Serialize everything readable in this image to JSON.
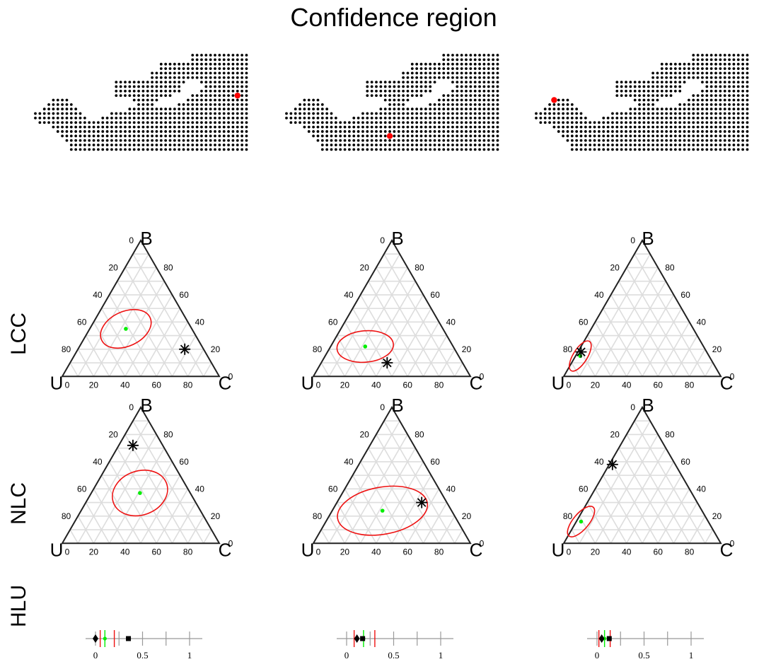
{
  "title": "Confidence region",
  "row_labels": {
    "lcc": "LCC",
    "nlc": "NLC",
    "hlu": "HLU"
  },
  "colors": {
    "dot": "#000000",
    "highlight": "#ff0000",
    "region": "#ee1111",
    "estimate": "#00ee00",
    "grid": "#dddddd",
    "edge": "#222222",
    "axis": "#999999"
  },
  "chart_data": {
    "type": "scatter",
    "title": "Confidence region",
    "maps": {
      "grid_rows": [
        {
          "y": 0,
          "x0": 35,
          "x1": 47
        },
        {
          "y": 1,
          "x0": 35,
          "x1": 47
        },
        {
          "y": 2,
          "x0": 28,
          "x1": 47
        },
        {
          "y": 3,
          "x0": 28,
          "x1": 47
        },
        {
          "y": 4,
          "x0": 26,
          "x1": 47
        },
        {
          "y": 5,
          "x0": 26,
          "x1": 47
        },
        {
          "y": 6,
          "x0": 18,
          "x1": 33
        },
        {
          "y": 6,
          "x0": 37,
          "x1": 47
        },
        {
          "y": 7,
          "x0": 18,
          "x1": 32
        },
        {
          "y": 7,
          "x0": 38,
          "x1": 47
        },
        {
          "y": 8,
          "x0": 18,
          "x1": 32
        },
        {
          "y": 8,
          "x0": 37,
          "x1": 47
        },
        {
          "y": 9,
          "x0": 18,
          "x1": 30
        },
        {
          "y": 9,
          "x0": 35,
          "x1": 47
        },
        {
          "y": 10,
          "x0": 4,
          "x1": 7
        },
        {
          "y": 10,
          "x0": 22,
          "x1": 27
        },
        {
          "y": 10,
          "x0": 34,
          "x1": 47
        },
        {
          "y": 11,
          "x0": 3,
          "x1": 8
        },
        {
          "y": 11,
          "x0": 23,
          "x1": 26
        },
        {
          "y": 11,
          "x0": 32,
          "x1": 47
        },
        {
          "y": 12,
          "x0": 2,
          "x1": 9
        },
        {
          "y": 12,
          "x0": 21,
          "x1": 47
        },
        {
          "y": 13,
          "x0": 0,
          "x1": 10
        },
        {
          "y": 13,
          "x0": 17,
          "x1": 47
        },
        {
          "y": 14,
          "x0": 0,
          "x1": 11
        },
        {
          "y": 14,
          "x0": 15,
          "x1": 47
        },
        {
          "y": 15,
          "x0": 1,
          "x1": 47
        },
        {
          "y": 16,
          "x0": 4,
          "x1": 47
        },
        {
          "y": 17,
          "x0": 5,
          "x1": 47
        },
        {
          "y": 18,
          "x0": 6,
          "x1": 47
        },
        {
          "y": 19,
          "x0": 7,
          "x1": 47
        },
        {
          "y": 20,
          "x0": 8,
          "x1": 47
        },
        {
          "y": 21,
          "x0": 8,
          "x1": 47
        }
      ],
      "highlighted_sites": [
        {
          "x": 45,
          "y": 9
        },
        {
          "x": 23,
          "y": 18
        },
        {
          "x": 4,
          "y": 10
        }
      ]
    },
    "ternary": {
      "vertex_labels": [
        "B",
        "U",
        "C"
      ],
      "ticks": [
        0,
        20,
        40,
        60,
        80
      ],
      "panels": [
        {
          "row": "LCC",
          "col": 1,
          "star": {
            "U": 12,
            "B": 20,
            "C": 68
          },
          "estimate": {
            "U": 42,
            "B": 35,
            "C": 23
          },
          "region": {
            "rx": 0.17,
            "ry": 0.11,
            "angle": -25
          }
        },
        {
          "row": "LCC",
          "col": 2,
          "star": {
            "U": 48,
            "B": 10,
            "C": 42
          },
          "estimate": {
            "U": 56,
            "B": 22,
            "C": 22
          },
          "region": {
            "rx": 0.18,
            "ry": 0.1,
            "angle": -5
          }
        },
        {
          "row": "LCC",
          "col": 3,
          "star": {
            "U": 80,
            "B": 18,
            "C": 2
          },
          "estimate": {
            "U": 82,
            "B": 15,
            "C": 3
          },
          "region": {
            "rx": 0.11,
            "ry": 0.045,
            "angle": -58
          }
        },
        {
          "row": "NLC",
          "col": 1,
          "star": {
            "U": 19,
            "B": 72,
            "C": 9
          },
          "estimate": {
            "U": 32,
            "B": 37,
            "C": 31
          },
          "region": {
            "rx": 0.18,
            "ry": 0.14,
            "angle": -20
          }
        },
        {
          "row": "NLC",
          "col": 2,
          "star": {
            "U": 16,
            "B": 30,
            "C": 54
          },
          "estimate": {
            "U": 44,
            "B": 24,
            "C": 32
          },
          "region": {
            "rx": 0.29,
            "ry": 0.15,
            "angle": -10
          }
        },
        {
          "row": "NLC",
          "col": 3,
          "star": {
            "U": 40,
            "B": 58,
            "C": 2
          },
          "estimate": {
            "U": 81,
            "B": 16,
            "C": 3
          },
          "region": {
            "rx": 0.12,
            "ry": 0.05,
            "angle": -50
          }
        }
      ]
    },
    "hlu": {
      "x_ticks": [
        0,
        0.25,
        0.5,
        0.75,
        1
      ],
      "x_tick_labels": [
        "0",
        "0.5",
        "1"
      ],
      "panels": [
        {
          "col": 1,
          "diamond": 0.0,
          "estimate": 0.1,
          "ci": [
            0.05,
            0.2
          ],
          "square": 0.35
        },
        {
          "col": 2,
          "diamond": 0.11,
          "estimate": 0.18,
          "ci": [
            0.08,
            0.3
          ],
          "square": 0.17
        },
        {
          "col": 3,
          "diamond": 0.05,
          "estimate": 0.08,
          "ci": [
            0.02,
            0.14
          ],
          "square": 0.13
        }
      ]
    }
  }
}
